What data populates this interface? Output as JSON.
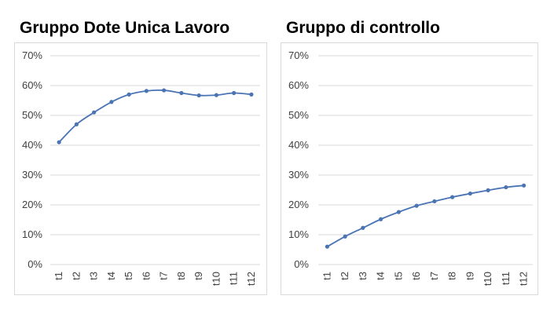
{
  "chart_data": [
    {
      "type": "line",
      "title": "Gruppo Dote Unica Lavoro",
      "categories": [
        "t1",
        "t2",
        "t3",
        "t4",
        "t5",
        "t6",
        "t7",
        "t8",
        "t9",
        "t10",
        "t11",
        "t12"
      ],
      "series": [
        {
          "values": [
            0.41,
            0.47,
            0.51,
            0.545,
            0.57,
            0.582,
            0.584,
            0.575,
            0.567,
            0.568,
            0.575,
            0.57
          ]
        }
      ],
      "yticks": [
        "0%",
        "10%",
        "20%",
        "30%",
        "40%",
        "50%",
        "60%",
        "70%"
      ],
      "ylim": [
        0,
        0.7
      ],
      "grid": true,
      "color": "#4a74b4"
    },
    {
      "type": "line",
      "title": "Gruppo di controllo",
      "categories": [
        "t1",
        "t2",
        "t3",
        "t4",
        "t5",
        "t6",
        "t7",
        "t8",
        "t9",
        "t10",
        "t11",
        "t12"
      ],
      "series": [
        {
          "values": [
            0.06,
            0.094,
            0.123,
            0.152,
            0.176,
            0.197,
            0.212,
            0.226,
            0.238,
            0.249,
            0.259,
            0.265
          ]
        }
      ],
      "yticks": [
        "0%",
        "10%",
        "20%",
        "30%",
        "40%",
        "50%",
        "60%",
        "70%"
      ],
      "ylim": [
        0,
        0.7
      ],
      "grid": true,
      "color": "#4a74b4"
    }
  ]
}
